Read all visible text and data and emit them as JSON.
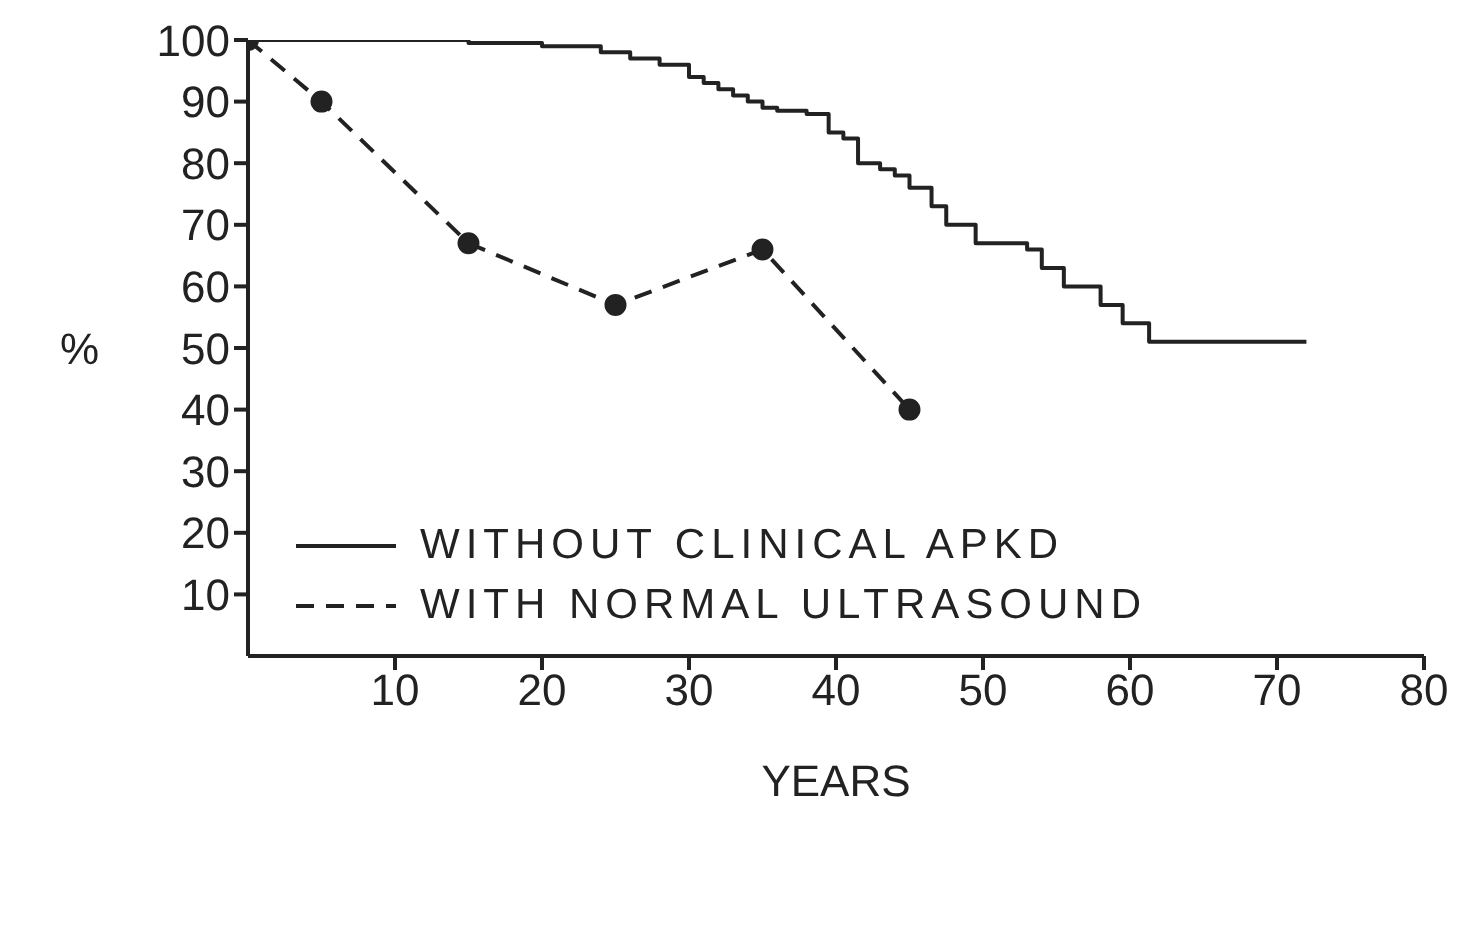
{
  "chart_data": {
    "type": "line",
    "xlabel": "YEARS",
    "ylabel": "%",
    "xlim": [
      0,
      80
    ],
    "xticks": [
      10,
      20,
      30,
      40,
      50,
      60,
      70,
      80
    ],
    "ylim": [
      0,
      100
    ],
    "yticks": [
      10,
      20,
      30,
      40,
      50,
      60,
      70,
      80,
      90,
      100
    ],
    "grid": false,
    "legend": "bottom left",
    "series": [
      {
        "name": "WITHOUT CLINICAL APKD",
        "type": "step",
        "color": "#222222",
        "line_style": "solid",
        "marker": "none",
        "x": [
          0,
          15,
          20,
          24,
          26,
          28,
          30,
          31,
          32,
          33,
          34,
          35,
          36,
          38,
          39.5,
          40.5,
          41.5,
          43,
          44,
          45,
          46.5,
          47.5,
          49.5,
          53,
          54,
          55.5,
          58,
          59.5,
          61.3,
          72
        ],
        "values": [
          100,
          99.5,
          99,
          98,
          97,
          96,
          94,
          93,
          92,
          91,
          90,
          89,
          88.5,
          88,
          85,
          84,
          80,
          79,
          78,
          76,
          73,
          70,
          67,
          66,
          63,
          60,
          57,
          54,
          51,
          51
        ]
      },
      {
        "name": "WITH NORMAL ULTRASOUND",
        "type": "line",
        "color": "#222222",
        "line_style": "dashed",
        "marker": "circle",
        "x": [
          0,
          5,
          15,
          25,
          35,
          45
        ],
        "values": [
          100,
          90,
          67,
          57,
          66,
          40
        ]
      }
    ]
  }
}
